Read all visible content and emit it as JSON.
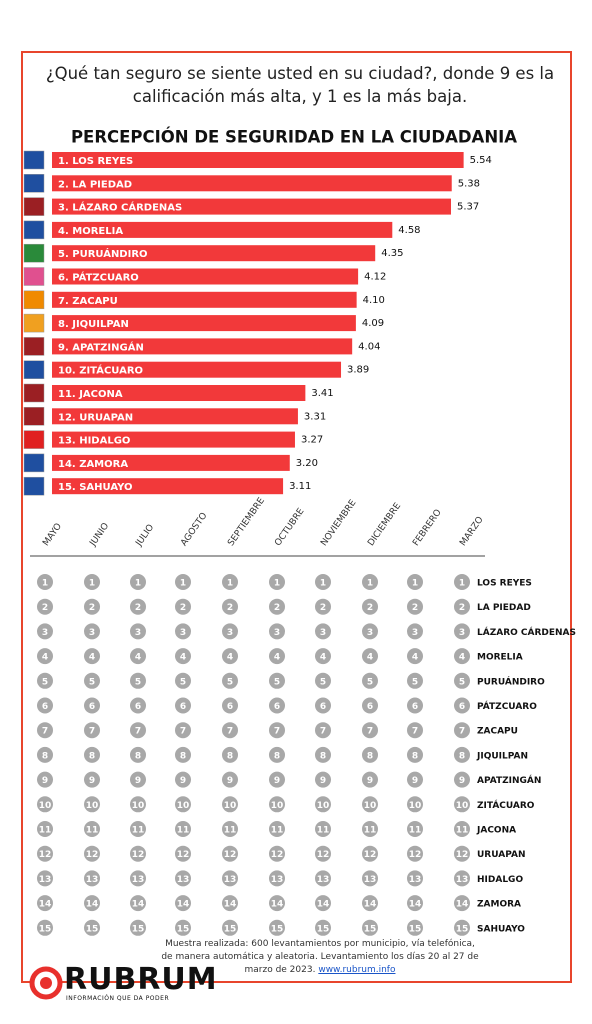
{
  "title": "¿Qué tan seguro se siente usted en su ciudad?, donde 9 es la calificación más alta, y  1 es la más baja.",
  "chart_data": [
    {
      "type": "bar",
      "title": "PERCEPCIÓN DE SEGURIDAD EN LA CIUDADANIA",
      "categories": [
        "1. LOS REYES",
        "2. LA PIEDAD",
        "3. LÁZARO CÁRDENAS",
        "4. MORELIA",
        "5. PURUÁNDIRO",
        "6. PÁTZCUARO",
        "7. ZACAPU",
        "8. JIQUILPAN",
        "9. APATZINGÁN",
        "10. ZITÁCUARO",
        "11. JACONA",
        "12. URUAPAN",
        "13. HIDALGO",
        "14. ZAMORA",
        "15. SAHUAYO"
      ],
      "values": [
        5.54,
        5.38,
        5.37,
        4.58,
        4.35,
        4.12,
        4.1,
        4.09,
        4.04,
        3.89,
        3.41,
        3.31,
        3.27,
        3.2,
        3.11
      ],
      "value_labels": [
        "5.54",
        "5.38",
        "5.37",
        "4.58",
        "4.35",
        "4.12",
        "4.10",
        "4.09",
        "4.04",
        "3.89",
        "3.41",
        "3.31",
        "3.27",
        "3.20",
        "3.11"
      ],
      "color": "#f2393a"
    },
    {
      "type": "bump",
      "x": [
        "MAYO",
        "JUNIO",
        "JULIO",
        "AGOSTO",
        "SEPTIEMBRE",
        "OCTUBRE",
        "NOVIEMBRE",
        "DICIEMBRE",
        "FEBRERO",
        "MARZO"
      ],
      "ranks": [
        1,
        2,
        3,
        4,
        5,
        6,
        7,
        8,
        9,
        10,
        11,
        12,
        13,
        14,
        15
      ],
      "labels": [
        "LOS REYES",
        "LA PIEDAD",
        "LÁZARO CÁRDENAS",
        "MORELIA",
        "PURUÁNDIRO",
        "PÁTZCUARO",
        "ZACAPU",
        "JIQUILPAN",
        "APATZINGÁN",
        "ZITÁCUARO",
        "JACONA",
        "URUAPAN",
        "HIDALGO",
        "ZAMORA",
        "SAHUAYO"
      ]
    }
  ],
  "footnote": "Muestra realizada: 600 levantamientos por municipio, vía telefónica, de manera automática y aleatoria. Levantamiento los días 20 al 27 de marzo de 2023.",
  "footnote_link": "www.rubrum.info",
  "brand": "RUBRUM",
  "tagline": "INFORMACIÓN QUE DA PODER"
}
